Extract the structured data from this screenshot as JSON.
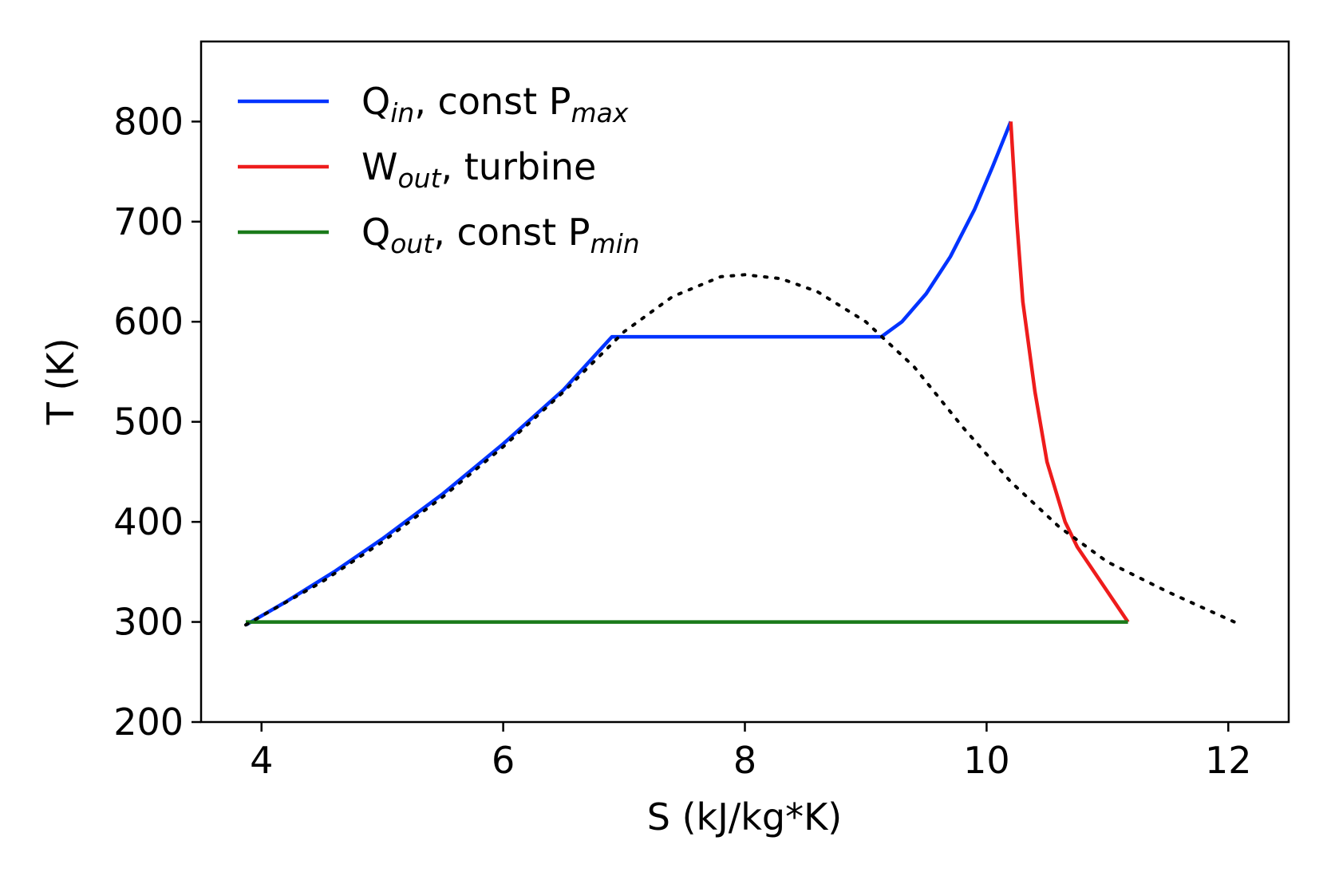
{
  "chart_data": {
    "type": "line",
    "title": "",
    "xlabel": "S (kJ/kg*K)",
    "ylabel": "T (K)",
    "xlim": [
      3.5,
      12.5
    ],
    "ylim": [
      200,
      880
    ],
    "x_ticks": [
      4,
      6,
      8,
      10,
      12
    ],
    "y_ticks": [
      200,
      300,
      400,
      500,
      600,
      700,
      800
    ],
    "x_tick_labels": [
      "4",
      "6",
      "8",
      "10",
      "12"
    ],
    "y_tick_labels": [
      "200",
      "300",
      "400",
      "500",
      "600",
      "700",
      "800"
    ],
    "grid": false,
    "legend_position": "top-left",
    "series": [
      {
        "name_main": "Q",
        "name_sub": "in",
        "name_rest": ", const P",
        "name_sub2": "max",
        "color": "#0033ff",
        "style": "solid",
        "points": [
          [
            3.87,
            297
          ],
          [
            4.2,
            320
          ],
          [
            4.6,
            350
          ],
          [
            5.0,
            383
          ],
          [
            5.5,
            428
          ],
          [
            6.0,
            478
          ],
          [
            6.5,
            532
          ],
          [
            6.9,
            585
          ],
          [
            7.5,
            585
          ],
          [
            8.5,
            585
          ],
          [
            9.13,
            585
          ],
          [
            9.3,
            600
          ],
          [
            9.5,
            628
          ],
          [
            9.7,
            665
          ],
          [
            9.9,
            712
          ],
          [
            10.05,
            755
          ],
          [
            10.2,
            800
          ]
        ]
      },
      {
        "name_main": "W",
        "name_sub": "out",
        "name_rest": ", turbine",
        "name_sub2": "",
        "color": "#ee1c1c",
        "style": "solid",
        "points": [
          [
            10.2,
            800
          ],
          [
            10.25,
            700
          ],
          [
            10.3,
            620
          ],
          [
            10.4,
            530
          ],
          [
            10.5,
            460
          ],
          [
            10.65,
            400
          ],
          [
            10.75,
            375
          ],
          [
            11.17,
            300
          ]
        ]
      },
      {
        "name_main": "Q",
        "name_sub": "out",
        "name_rest": ", const P",
        "name_sub2": "min",
        "color": "#1a7a1a",
        "style": "solid",
        "points": [
          [
            3.87,
            300
          ],
          [
            11.17,
            300
          ]
        ]
      },
      {
        "name_main": "",
        "name_sub": "",
        "name_rest": "",
        "name_sub2": "",
        "color": "#000000",
        "style": "dotted",
        "points": [
          [
            3.87,
            297
          ],
          [
            4.5,
            340
          ],
          [
            5.0,
            380
          ],
          [
            5.5,
            425
          ],
          [
            6.0,
            475
          ],
          [
            6.5,
            530
          ],
          [
            7.0,
            590
          ],
          [
            7.4,
            625
          ],
          [
            7.8,
            645
          ],
          [
            8.0,
            647
          ],
          [
            8.3,
            643
          ],
          [
            8.6,
            630
          ],
          [
            9.0,
            600
          ],
          [
            9.4,
            555
          ],
          [
            9.8,
            495
          ],
          [
            10.2,
            440
          ],
          [
            10.6,
            395
          ],
          [
            11.0,
            360
          ],
          [
            11.5,
            330
          ],
          [
            12.05,
            300
          ]
        ]
      }
    ]
  }
}
